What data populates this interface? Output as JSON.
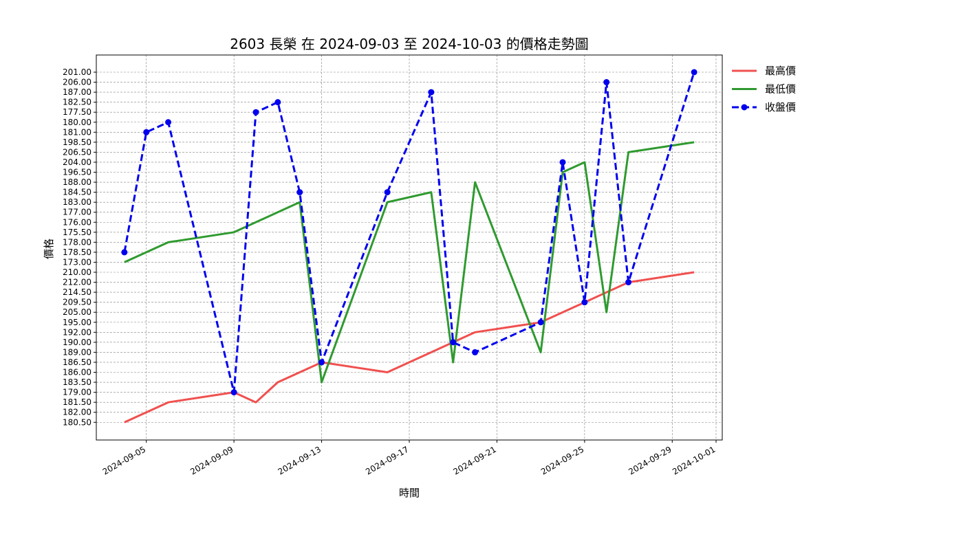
{
  "chart_data": {
    "type": "line",
    "title": "2603 長榮 在 2024-09-03 至 2024-10-03 的價格走勢圖",
    "xlabel": "時間",
    "ylabel": "價格",
    "y_axis_type": "category",
    "y_categories": [
      "180.50",
      "182.00",
      "181.50",
      "179.00",
      "183.50",
      "186.00",
      "186.50",
      "189.00",
      "190.00",
      "192.00",
      "195.00",
      "205.00",
      "209.50",
      "214.50",
      "212.00",
      "210.00",
      "173.00",
      "178.50",
      "178.00",
      "175.50",
      "176.00",
      "177.00",
      "183.00",
      "184.50",
      "188.00",
      "196.50",
      "204.00",
      "206.50",
      "198.50",
      "181.00",
      "180.00",
      "177.50",
      "182.50",
      "187.00",
      "206.00",
      "201.00"
    ],
    "x_ticks": [
      "2024-09-05",
      "2024-09-09",
      "2024-09-13",
      "2024-09-17",
      "2024-09-21",
      "2024-09-25",
      "2024-09-29",
      "2024-10-01"
    ],
    "x_range": [
      "2024-09-03",
      "2024-10-01"
    ],
    "grid": true,
    "legend_position": "outside-right",
    "series": [
      {
        "name": "最高價",
        "color": "#f0504f",
        "style": "solid",
        "marker": false,
        "points": [
          {
            "x": "2024-09-04",
            "y": "180.50"
          },
          {
            "x": "2024-09-06",
            "y": "181.50"
          },
          {
            "x": "2024-09-09",
            "y": "179.00"
          },
          {
            "x": "2024-09-10",
            "y": "181.50"
          },
          {
            "x": "2024-09-11",
            "y": "183.50"
          },
          {
            "x": "2024-09-13",
            "y": "186.50"
          },
          {
            "x": "2024-09-16",
            "y": "186.00"
          },
          {
            "x": "2024-09-20",
            "y": "192.00"
          },
          {
            "x": "2024-09-23",
            "y": "195.00"
          },
          {
            "x": "2024-09-25",
            "y": "209.50"
          },
          {
            "x": "2024-09-27",
            "y": "212.00"
          },
          {
            "x": "2024-09-30",
            "y": "210.00"
          }
        ]
      },
      {
        "name": "最低價",
        "color": "#2f9a2f",
        "style": "solid",
        "marker": false,
        "points": [
          {
            "x": "2024-09-04",
            "y": "173.00"
          },
          {
            "x": "2024-09-06",
            "y": "178.00"
          },
          {
            "x": "2024-09-09",
            "y": "175.50"
          },
          {
            "x": "2024-09-12",
            "y": "183.00"
          },
          {
            "x": "2024-09-13",
            "y": "183.50"
          },
          {
            "x": "2024-09-16",
            "y": "183.00"
          },
          {
            "x": "2024-09-18",
            "y": "184.50"
          },
          {
            "x": "2024-09-19",
            "y": "186.50"
          },
          {
            "x": "2024-09-20",
            "y": "188.00"
          },
          {
            "x": "2024-09-23",
            "y": "189.00"
          },
          {
            "x": "2024-09-24",
            "y": "196.50"
          },
          {
            "x": "2024-09-25",
            "y": "204.00"
          },
          {
            "x": "2024-09-26",
            "y": "205.00"
          },
          {
            "x": "2024-09-27",
            "y": "206.50"
          },
          {
            "x": "2024-09-30",
            "y": "198.50"
          }
        ]
      },
      {
        "name": "收盤價",
        "color": "#0000ee",
        "style": "dashed",
        "marker": true,
        "points": [
          {
            "x": "2024-09-04",
            "y": "178.50"
          },
          {
            "x": "2024-09-05",
            "y": "181.00"
          },
          {
            "x": "2024-09-06",
            "y": "180.00"
          },
          {
            "x": "2024-09-09",
            "y": "179.00"
          },
          {
            "x": "2024-09-10",
            "y": "177.50"
          },
          {
            "x": "2024-09-11",
            "y": "182.50"
          },
          {
            "x": "2024-09-12",
            "y": "184.50"
          },
          {
            "x": "2024-09-13",
            "y": "186.50"
          },
          {
            "x": "2024-09-16",
            "y": "184.50"
          },
          {
            "x": "2024-09-18",
            "y": "187.00"
          },
          {
            "x": "2024-09-19",
            "y": "190.00"
          },
          {
            "x": "2024-09-20",
            "y": "189.00"
          },
          {
            "x": "2024-09-23",
            "y": "195.00"
          },
          {
            "x": "2024-09-24",
            "y": "204.00"
          },
          {
            "x": "2024-09-25",
            "y": "209.50"
          },
          {
            "x": "2024-09-26",
            "y": "206.00"
          },
          {
            "x": "2024-09-27",
            "y": "212.00"
          },
          {
            "x": "2024-09-30",
            "y": "201.00"
          }
        ]
      }
    ]
  }
}
